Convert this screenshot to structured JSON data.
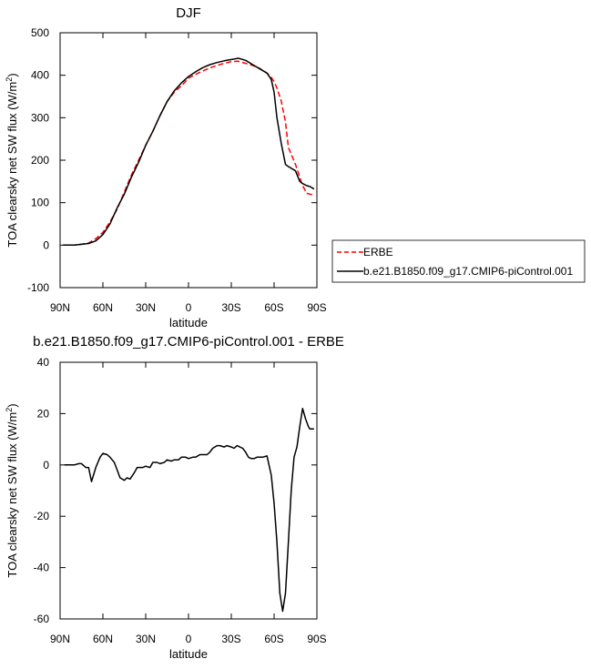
{
  "chart_data": [
    {
      "type": "line",
      "title": "DJF",
      "xlabel": "latitude",
      "ylabel": "TOA clearsky net SW flux (W/m",
      "ylabel_sup": "2",
      "ylabel_close": ")",
      "xlim": [
        90,
        -90
      ],
      "ylim": [
        -100,
        500
      ],
      "xticks": [
        90,
        60,
        30,
        0,
        -30,
        -60,
        -90
      ],
      "xtick_labels": [
        "90N",
        "60N",
        "30N",
        "0",
        "30S",
        "60S",
        "90S"
      ],
      "yticks": [
        -100,
        0,
        100,
        200,
        300,
        400,
        500
      ],
      "ytick_labels": [
        "-100",
        "0",
        "100",
        "200",
        "300",
        "400",
        "500"
      ],
      "legend_position": "right",
      "series": [
        {
          "name": "ERBE",
          "color": "#ff0000",
          "dash": "dashed",
          "x": [
            88,
            85,
            80,
            75,
            70,
            65,
            60,
            55,
            50,
            45,
            40,
            35,
            30,
            25,
            20,
            15,
            10,
            5,
            0,
            -5,
            -10,
            -15,
            -20,
            -25,
            -30,
            -35,
            -40,
            -45,
            -50,
            -55,
            -58,
            -60,
            -62,
            -65,
            -68,
            -70,
            -75,
            -78,
            -80,
            -83,
            -85,
            -88
          ],
          "y": [
            0,
            0,
            0,
            2,
            5,
            15,
            30,
            55,
            85,
            125,
            165,
            200,
            235,
            268,
            305,
            338,
            360,
            375,
            393,
            402,
            410,
            417,
            423,
            428,
            432,
            433,
            428,
            423,
            416,
            405,
            395,
            385,
            370,
            340,
            290,
            230,
            190,
            160,
            140,
            122,
            120,
            118
          ]
        },
        {
          "name": "b.e21.B1850.f09_g17.CMIP6-piControl.001",
          "color": "#000000",
          "dash": "solid",
          "x": [
            88,
            85,
            80,
            75,
            70,
            65,
            60,
            55,
            50,
            45,
            40,
            35,
            30,
            25,
            20,
            15,
            10,
            5,
            0,
            -5,
            -10,
            -15,
            -20,
            -25,
            -30,
            -35,
            -40,
            -45,
            -50,
            -55,
            -58,
            -60,
            -62,
            -65,
            -68,
            -70,
            -75,
            -78,
            -80,
            -83,
            -85,
            -88
          ],
          "y": [
            0,
            0,
            0,
            2,
            4,
            10,
            25,
            50,
            88,
            120,
            160,
            195,
            235,
            268,
            305,
            338,
            363,
            382,
            397,
            408,
            418,
            425,
            430,
            434,
            437,
            440,
            435,
            425,
            415,
            405,
            390,
            360,
            300,
            240,
            190,
            185,
            175,
            150,
            145,
            140,
            138,
            132
          ]
        }
      ]
    },
    {
      "type": "line",
      "title": "b.e21.B1850.f09_g17.CMIP6-piControl.001 - ERBE",
      "xlabel": "latitude",
      "ylabel": "TOA clearsky net SW flux (W/m",
      "ylabel_sup": "2",
      "ylabel_close": ")",
      "xlim": [
        90,
        -90
      ],
      "ylim": [
        -60,
        40
      ],
      "xticks": [
        90,
        60,
        30,
        0,
        -30,
        -60,
        -90
      ],
      "xtick_labels": [
        "90N",
        "60N",
        "30N",
        "0",
        "30S",
        "60S",
        "90S"
      ],
      "yticks": [
        -60,
        -40,
        -20,
        0,
        20,
        40
      ],
      "ytick_labels": [
        "-60",
        "-40",
        "-20",
        "0",
        "20",
        "40"
      ],
      "series": [
        {
          "color": "#000000",
          "dash": "solid",
          "x": [
            87,
            85,
            80,
            77,
            75,
            72,
            70,
            68,
            65,
            62,
            60,
            57,
            55,
            52,
            50,
            48,
            45,
            43,
            41,
            38,
            36,
            34,
            32,
            30,
            27,
            25,
            22,
            20,
            17,
            15,
            12,
            10,
            7,
            5,
            2,
            0,
            -3,
            -5,
            -8,
            -10,
            -13,
            -15,
            -17,
            -20,
            -22,
            -25,
            -27,
            -30,
            -32,
            -34,
            -36,
            -38,
            -40,
            -42,
            -44,
            -46,
            -48,
            -50,
            -52,
            -55,
            -58,
            -60,
            -62,
            -64,
            -66,
            -68,
            -70,
            -72,
            -74,
            -76,
            -78,
            -80,
            -82,
            -84,
            -85,
            -86,
            -88
          ],
          "y": [
            0,
            0,
            0,
            0.5,
            0.5,
            -1,
            -1,
            -6.5,
            -1,
            3,
            4.5,
            4,
            3,
            1,
            -2,
            -5,
            -6,
            -5,
            -5.5,
            -3,
            -1,
            -1,
            -1,
            -0.5,
            -1,
            1,
            1,
            0.5,
            1,
            2,
            1.5,
            2,
            2,
            3,
            3,
            2.5,
            3,
            3,
            4,
            4,
            4,
            5,
            6.5,
            7.5,
            7.5,
            7,
            7.5,
            7,
            6.5,
            7.5,
            7,
            6.5,
            5,
            3,
            2.5,
            2.5,
            3,
            3,
            3,
            3.5,
            -4,
            -15,
            -30,
            -50,
            -57,
            -50,
            -30,
            -10,
            3,
            7,
            15,
            22,
            18,
            15,
            14,
            14,
            14
          ]
        }
      ]
    }
  ]
}
